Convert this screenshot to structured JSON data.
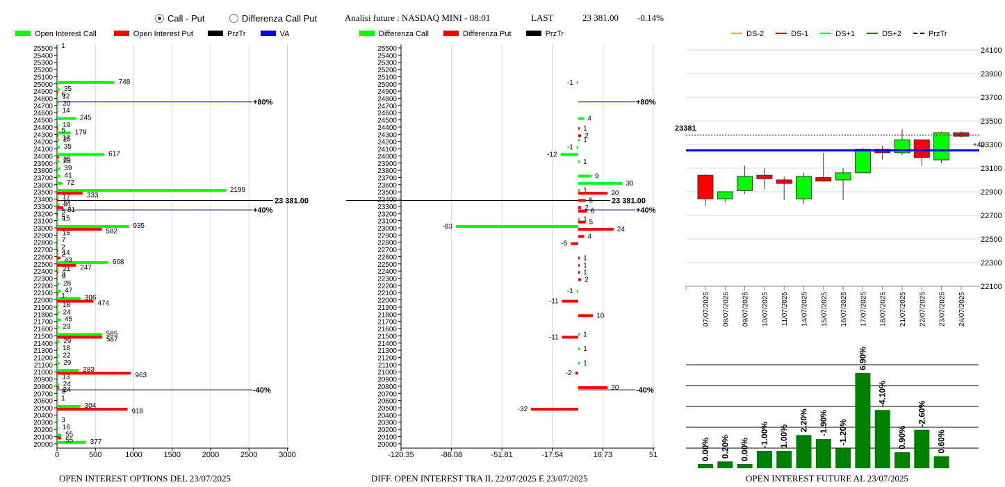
{
  "header": {
    "radio_call_put": "Call - Put",
    "radio_diff": "Differenza Call Put",
    "analysis": "Analisi future : NASDAQ MINI - 08:01",
    "last_label": "LAST",
    "last_value": "23 381.00",
    "last_change": "-0.14%"
  },
  "legend1": [
    {
      "label": "Open Interest Call",
      "color": "#00ff00"
    },
    {
      "label": "Open Interest Put",
      "color": "#ff0000"
    },
    {
      "label": "PrzTr",
      "color": "#000000"
    },
    {
      "label": "VA",
      "color": "#0000ff"
    }
  ],
  "legend2": [
    {
      "label": "Differenza Call",
      "color": "#00ff00"
    },
    {
      "label": "Differenza Put",
      "color": "#ff0000"
    },
    {
      "label": "PrzTr",
      "color": "#000000"
    }
  ],
  "legend3": [
    {
      "label": "DS-2",
      "color": "#f4a460",
      "style": "solid"
    },
    {
      "label": "DS-1",
      "color": "#cc0000",
      "style": "solid"
    },
    {
      "label": "DS+1",
      "color": "#00ff00",
      "style": "solid"
    },
    {
      "label": "DS+2",
      "color": "#008000",
      "style": "solid"
    },
    {
      "label": "PrzTr",
      "color": "#000000",
      "style": "dashed"
    }
  ],
  "captions": {
    "c1": "OPEN INTEREST OPTIONS DEL 23/07/2025",
    "c2": "DIFF. OPEN INTEREST TRA IL 22/07/2025 E 23/07/2025",
    "c3": "OPEN INTEREST FUTURE AL 23/07/2025"
  },
  "chart_data": [
    {
      "type": "bar",
      "orientation": "horizontal",
      "categories": [
        25500,
        25400,
        25300,
        25200,
        25100,
        25000,
        24900,
        24800,
        24700,
        24600,
        24500,
        24400,
        24300,
        24200,
        24100,
        24000,
        23900,
        23800,
        23700,
        23600,
        23500,
        23400,
        23300,
        23200,
        23100,
        23000,
        22900,
        22800,
        22700,
        22600,
        22500,
        22400,
        22300,
        22200,
        22100,
        22000,
        21900,
        21800,
        21700,
        21600,
        21500,
        21400,
        21300,
        21200,
        21100,
        21000,
        20900,
        20800,
        20700,
        20600,
        20500,
        20400,
        20300,
        20200,
        20100,
        20000
      ],
      "x_ticks": [
        0,
        500,
        1000,
        1500,
        2000,
        2500,
        3000
      ],
      "xlim": [
        0,
        3000
      ],
      "series": [
        {
          "name": "Open Interest Call",
          "color": "#00ff00",
          "points": [
            [
              25500,
              1
            ],
            [
              25000,
              748
            ],
            [
              24900,
              35
            ],
            [
              24800,
              12
            ],
            [
              24700,
              20
            ],
            [
              24600,
              14
            ],
            [
              24500,
              245
            ],
            [
              24400,
              19
            ],
            [
              24300,
              179
            ],
            [
              24200,
              25
            ],
            [
              24100,
              35
            ],
            [
              24000,
              617
            ],
            [
              23900,
              25
            ],
            [
              23800,
              39
            ],
            [
              23700,
              41
            ],
            [
              23600,
              72
            ],
            [
              23500,
              2199
            ],
            [
              23400,
              17
            ],
            [
              23300,
              31
            ],
            [
              23200,
              5
            ],
            [
              23100,
              15
            ],
            [
              23000,
              935
            ],
            [
              22900,
              16
            ],
            [
              22800,
              7
            ],
            [
              22700,
              2
            ],
            [
              22600,
              2
            ],
            [
              22500,
              668
            ],
            [
              22400,
              21
            ],
            [
              22300,
              9
            ],
            [
              22200,
              28
            ],
            [
              22100,
              47
            ],
            [
              22000,
              306
            ],
            [
              21900,
              18
            ],
            [
              21800,
              24
            ],
            [
              21700,
              45
            ],
            [
              21600,
              23
            ],
            [
              21500,
              585
            ],
            [
              21400,
              29
            ],
            [
              21300,
              18
            ],
            [
              21200,
              22
            ],
            [
              21100,
              29
            ],
            [
              21000,
              283
            ],
            [
              20900,
              13
            ],
            [
              20800,
              24
            ],
            [
              20700,
              8
            ],
            [
              20600,
              1
            ],
            [
              20500,
              304
            ],
            [
              20300,
              3
            ],
            [
              20200,
              16
            ],
            [
              20100,
              55
            ],
            [
              20000,
              377
            ]
          ]
        },
        {
          "name": "Open Interest Put",
          "color": "#ff0000",
          "points": [
            [
              24900,
              6
            ],
            [
              24400,
              5
            ],
            [
              24300,
              17
            ],
            [
              24000,
              25
            ],
            [
              23500,
              333
            ],
            [
              23400,
              17
            ],
            [
              23300,
              81
            ],
            [
              23200,
              5
            ],
            [
              23000,
              582
            ],
            [
              22700,
              14
            ],
            [
              22600,
              43
            ],
            [
              22500,
              247
            ],
            [
              22400,
              3
            ],
            [
              22100,
              1
            ],
            [
              22000,
              474
            ],
            [
              21500,
              587
            ],
            [
              21000,
              963
            ],
            [
              20800,
              24
            ],
            [
              20500,
              918
            ],
            [
              20100,
              55
            ]
          ]
        }
      ],
      "przTr": {
        "value": 23381,
        "label": "23 381.00"
      },
      "va_lines": [
        {
          "price": 24750,
          "label": "+80%"
        },
        {
          "price": 23250,
          "label": "+40%"
        },
        {
          "price": 20750,
          "label": "-40%"
        }
      ]
    },
    {
      "type": "bar",
      "orientation": "horizontal",
      "categories": [
        25500,
        25400,
        25300,
        25200,
        25100,
        25000,
        24900,
        24800,
        24700,
        24600,
        24500,
        24400,
        24300,
        24200,
        24100,
        24000,
        23900,
        23800,
        23700,
        23600,
        23500,
        23400,
        23300,
        23200,
        23100,
        23000,
        22900,
        22800,
        22700,
        22600,
        22500,
        22400,
        22300,
        22200,
        22100,
        22000,
        21900,
        21800,
        21700,
        21600,
        21500,
        21400,
        21300,
        21200,
        21100,
        21000,
        20900,
        20800,
        20700,
        20600,
        20500,
        20400,
        20300,
        20200,
        20100,
        20000
      ],
      "x_ticks": [
        -120.35,
        -86.08,
        -51.81,
        -17.54,
        16.73,
        51
      ],
      "xlim": [
        -120.35,
        51
      ],
      "series": [
        {
          "name": "Differenza Call",
          "color": "#00ff00",
          "points": [
            [
              25000,
              -1
            ],
            [
              24500,
              4
            ],
            [
              24200,
              1
            ],
            [
              24100,
              -1
            ],
            [
              24000,
              -12
            ],
            [
              23900,
              1
            ],
            [
              23700,
              9
            ],
            [
              23600,
              30
            ],
            [
              23500,
              1
            ],
            [
              23100,
              1
            ],
            [
              23000,
              -83
            ],
            [
              22100,
              -1
            ],
            [
              21500,
              1
            ],
            [
              21300,
              1
            ],
            [
              21100,
              1
            ]
          ]
        },
        {
          "name": "Differenza Put",
          "color": "#ff0000",
          "points": [
            [
              24400,
              1
            ],
            [
              24300,
              2
            ],
            [
              23500,
              20
            ],
            [
              23400,
              5
            ],
            [
              23300,
              2
            ],
            [
              23250,
              6
            ],
            [
              23100,
              5
            ],
            [
              23000,
              24
            ],
            [
              22900,
              4
            ],
            [
              22800,
              -5
            ],
            [
              22600,
              1
            ],
            [
              22500,
              1
            ],
            [
              22400,
              1
            ],
            [
              22300,
              2
            ],
            [
              22000,
              -11
            ],
            [
              21800,
              10
            ],
            [
              21500,
              -11
            ],
            [
              21000,
              -2
            ],
            [
              20800,
              20
            ],
            [
              20500,
              -32
            ]
          ]
        }
      ],
      "przTr": {
        "value": 23381,
        "label": "23 381.00"
      },
      "va_lines": [
        {
          "price": 24750,
          "label": "+80%"
        },
        {
          "price": 23250,
          "label": "+40%"
        },
        {
          "price": 20750,
          "label": "-40%"
        }
      ]
    },
    {
      "type": "candlestick",
      "categories": [
        "07/07/2025",
        "08/07/2025",
        "09/07/2025",
        "10/07/2025",
        "11/07/2025",
        "14/07/2025",
        "15/07/2025",
        "16/07/2025",
        "17/07/2025",
        "18/07/2025",
        "21/07/2025",
        "22/07/2025",
        "23/07/2025",
        "24/07/2025"
      ],
      "y_ticks": [
        24100,
        23900,
        23700,
        23500,
        23300,
        23100,
        22900,
        22700,
        22500,
        22300,
        22100
      ],
      "ylim": [
        22100,
        24100
      ],
      "candles": [
        {
          "o": 23040,
          "h": 23050,
          "l": 22780,
          "c": 22840
        },
        {
          "o": 22840,
          "h": 22880,
          "l": 22810,
          "c": 22900
        },
        {
          "o": 22910,
          "h": 23120,
          "l": 22880,
          "c": 23030
        },
        {
          "o": 23040,
          "h": 23100,
          "l": 22920,
          "c": 23010
        },
        {
          "o": 23000,
          "h": 23030,
          "l": 22830,
          "c": 22970
        },
        {
          "o": 22840,
          "h": 23060,
          "l": 22800,
          "c": 23030
        },
        {
          "o": 23020,
          "h": 23230,
          "l": 22990,
          "c": 22990
        },
        {
          "o": 23000,
          "h": 23100,
          "l": 22830,
          "c": 23060
        },
        {
          "o": 23060,
          "h": 23270,
          "l": 23060,
          "c": 23260
        },
        {
          "o": 23260,
          "h": 23290,
          "l": 23170,
          "c": 23230
        },
        {
          "o": 23230,
          "h": 23430,
          "l": 23210,
          "c": 23340
        },
        {
          "o": 23340,
          "h": 23340,
          "l": 23120,
          "c": 23190
        },
        {
          "o": 23170,
          "h": 23410,
          "l": 23140,
          "c": 23400
        },
        {
          "o": 23400,
          "h": 23410,
          "l": 23360,
          "c": 23370
        }
      ],
      "przTr": {
        "value": 23381,
        "label": "23381"
      },
      "va_line": {
        "value": 23250,
        "label": "+40"
      }
    },
    {
      "type": "bar",
      "categories": [
        "07/07/2025",
        "08/07/2025",
        "09/07/2025",
        "10/07/2025",
        "11/07/2025",
        "14/07/2025",
        "15/07/2025",
        "16/07/2025",
        "17/07/2025",
        "18/07/2025",
        "21/07/2025",
        "22/07/2025",
        "23/07/2025",
        "24/07/2025"
      ],
      "values": [
        0.0,
        0.2,
        0.0,
        -1.0,
        1.0,
        2.2,
        -1.9,
        -1.2,
        6.9,
        -4.1,
        0.9,
        -2.6,
        0.6
      ],
      "labels": [
        "0.00%",
        "0.20%",
        "0.00%",
        "-1.00%",
        "1.00%",
        "2.20%",
        "-1.90%",
        "-1.20%",
        "6.90%",
        "-4.10%",
        "0.90%",
        "-2.60%",
        "0.60%"
      ]
    }
  ]
}
